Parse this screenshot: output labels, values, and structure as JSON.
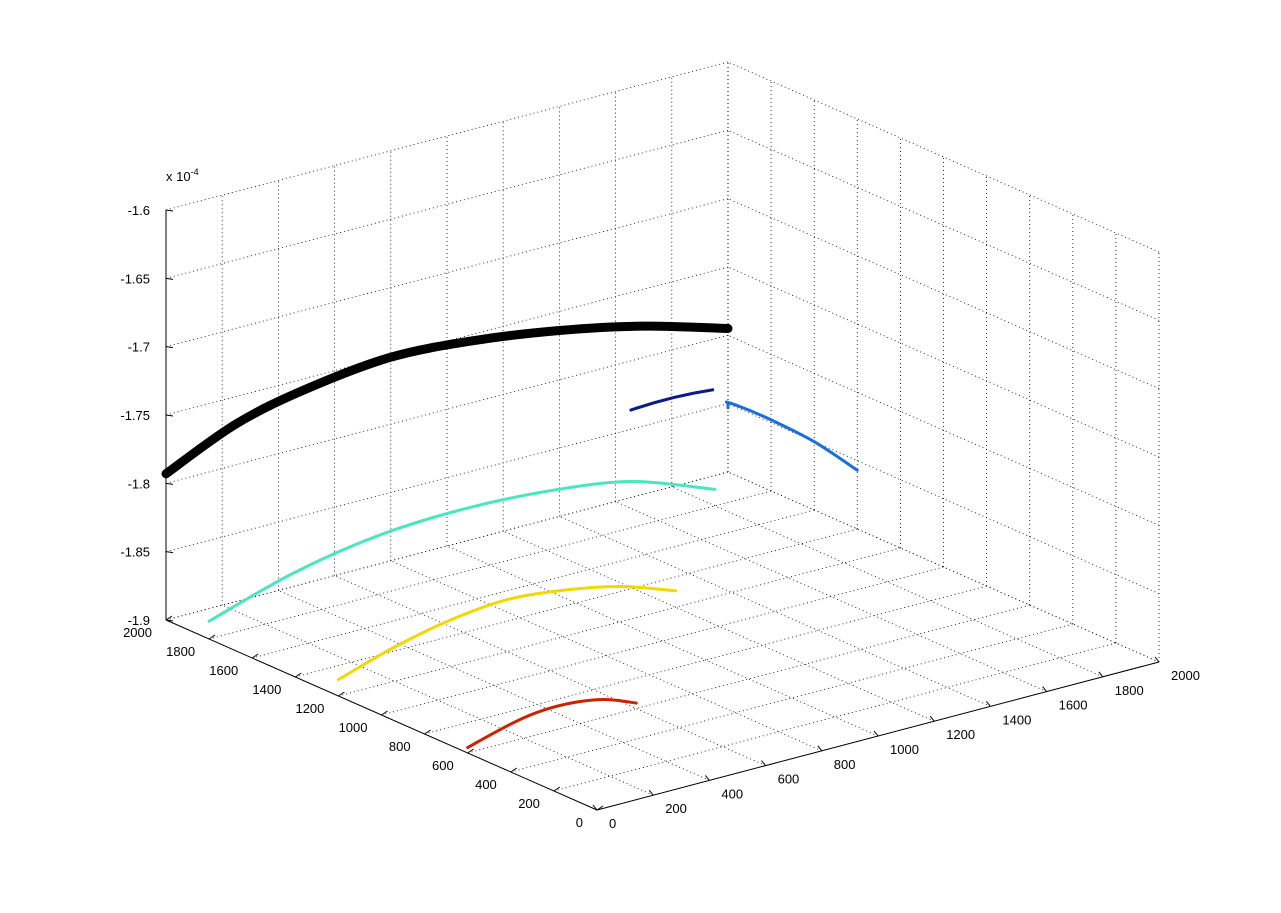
{
  "chart_data": {
    "type": "line",
    "projection": "3d",
    "title": "",
    "xlabel": "",
    "ylabel": "",
    "zlabel": "",
    "grid": true,
    "xlim": [
      0,
      2000
    ],
    "ylim": [
      0,
      2000
    ],
    "zlim": [
      -1.9,
      -1.6
    ],
    "z_exponent_label": "x 10",
    "z_exponent_power": "-4",
    "x_ticks": [
      0,
      200,
      400,
      600,
      800,
      1000,
      1200,
      1400,
      1600,
      1800,
      2000
    ],
    "x_tick_labels": [
      "0",
      "200",
      "400",
      "600",
      "800",
      "1000",
      "1200",
      "1400",
      "1600",
      "1800",
      "2000"
    ],
    "y_ticks": [
      0,
      200,
      400,
      600,
      800,
      1000,
      1200,
      1400,
      1600,
      1800,
      2000
    ],
    "y_tick_labels": [
      "0",
      "200",
      "400",
      "600",
      "800",
      "1000",
      "1200",
      "1400",
      "1600",
      "1800",
      "2000"
    ],
    "z_ticks": [
      -1.9,
      -1.85,
      -1.8,
      -1.75,
      -1.7,
      -1.65,
      -1.6
    ],
    "z_tick_labels": [
      "-1.9",
      "-1.85",
      "-1.8",
      "-1.75",
      "-1.7",
      "-1.65",
      "-1.6"
    ],
    "series": [
      {
        "color": "#cc2200",
        "width": 3,
        "x": [
          0,
          100,
          200,
          300,
          400,
          500,
          600
        ],
        "y": [
          600,
          600,
          600,
          600,
          600,
          600,
          600
        ],
        "z": [
          -1.896,
          -1.89,
          -1.885,
          -1.883,
          -1.884,
          -1.888,
          -1.896
        ]
      },
      {
        "color": "#f0d800",
        "width": 3,
        "x": [
          0,
          200,
          400,
          600,
          800,
          1000,
          1200
        ],
        "y": [
          1200,
          1200,
          1200,
          1200,
          1200,
          1200,
          1200
        ],
        "z": [
          -1.888,
          -1.875,
          -1.866,
          -1.862,
          -1.866,
          -1.874,
          -1.888
        ]
      },
      {
        "color": "#4ae6c0",
        "width": 3,
        "x": [
          0,
          300,
          600,
          900,
          1200,
          1500,
          1800
        ],
        "y": [
          1800,
          1800,
          1800,
          1800,
          1800,
          1800,
          1800
        ],
        "z": [
          -1.887,
          -1.868,
          -1.857,
          -1.854,
          -1.857,
          -1.866,
          -1.888
        ]
      },
      {
        "color": "#1a6fd8",
        "width": 3,
        "x": [
          2000,
          2000,
          2000,
          2000,
          2000,
          2000,
          2000
        ],
        "y": [
          1400,
          1600,
          1800,
          1900,
          2000,
          2000,
          2000
        ],
        "z": [
          -1.857,
          -1.85,
          -1.848,
          -1.848,
          -1.849,
          -1.85,
          -1.853
        ]
      },
      {
        "color": "#000000",
        "width": 9,
        "x": [
          0,
          250,
          500,
          800,
          1100,
          1400,
          1700,
          2000
        ],
        "y": [
          2000,
          2000,
          2000,
          2000,
          2000,
          2000,
          2000,
          2000
        ],
        "z": [
          -1.793,
          -1.77,
          -1.758,
          -1.751,
          -1.755,
          -1.764,
          -1.777,
          -1.795
        ]
      }
    ]
  }
}
